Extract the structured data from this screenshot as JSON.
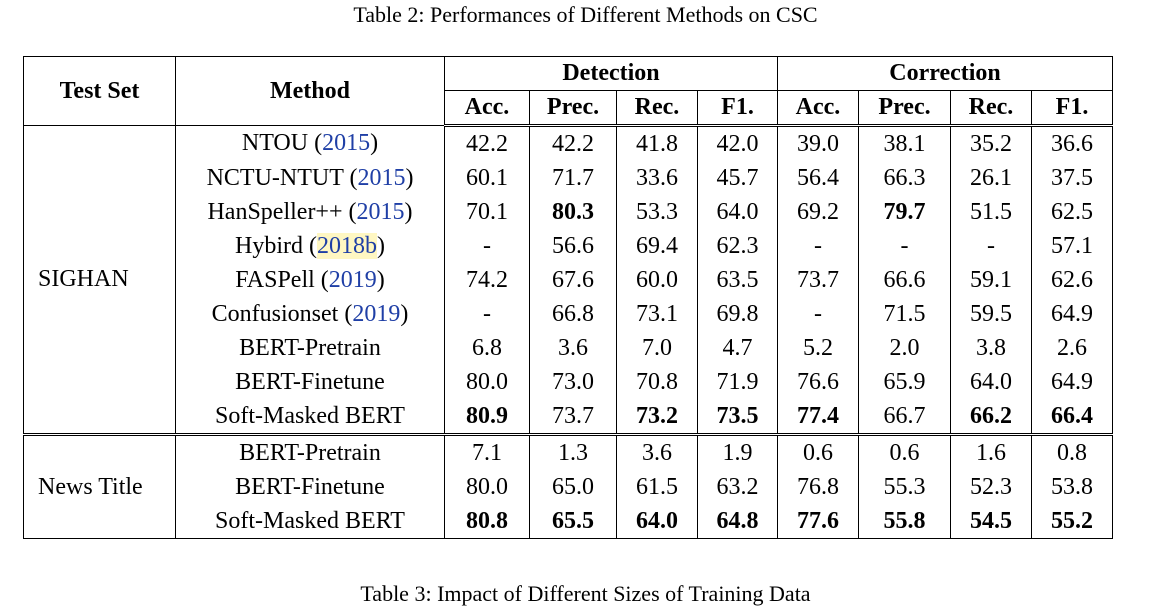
{
  "caption_top": "Table 2: Performances of Different Methods on CSC",
  "caption_bottom": "Table 3: Impact of Different Sizes of Training Data",
  "headers": {
    "test_set": "Test Set",
    "method": "Method",
    "detection": "Detection",
    "correction": "Correction",
    "metrics": [
      "Acc.",
      "Prec.",
      "Rec.",
      "F1.",
      "Acc.",
      "Prec.",
      "Rec.",
      "F1."
    ]
  },
  "groups": [
    {
      "name": "SIGHAN",
      "rows": [
        {
          "method": "NTOU",
          "cite": "2015",
          "values": [
            "42.2",
            "42.2",
            "41.8",
            "42.0",
            "39.0",
            "38.1",
            "35.2",
            "36.6"
          ],
          "bold": []
        },
        {
          "method": "NCTU-NTUT",
          "cite": "2015",
          "values": [
            "60.1",
            "71.7",
            "33.6",
            "45.7",
            "56.4",
            "66.3",
            "26.1",
            "37.5"
          ],
          "bold": []
        },
        {
          "method": "HanSpeller++",
          "cite": "2015",
          "values": [
            "70.1",
            "80.3",
            "53.3",
            "64.0",
            "69.2",
            "79.7",
            "51.5",
            "62.5"
          ],
          "bold": [
            1,
            5
          ]
        },
        {
          "method": "Hybird",
          "cite": "2018b",
          "values": [
            "-",
            "56.6",
            "69.4",
            "62.3",
            "-",
            "-",
            "-",
            "57.1"
          ],
          "bold": []
        },
        {
          "method": "FASPell",
          "cite": "2019",
          "values": [
            "74.2",
            "67.6",
            "60.0",
            "63.5",
            "73.7",
            "66.6",
            "59.1",
            "62.6"
          ],
          "bold": []
        },
        {
          "method": "Confusionset",
          "cite": "2019",
          "values": [
            "-",
            "66.8",
            "73.1",
            "69.8",
            "-",
            "71.5",
            "59.5",
            "64.9"
          ],
          "bold": []
        },
        {
          "method": "BERT-Pretrain",
          "cite": "",
          "values": [
            "6.8",
            "3.6",
            "7.0",
            "4.7",
            "5.2",
            "2.0",
            "3.8",
            "2.6"
          ],
          "bold": []
        },
        {
          "method": "BERT-Finetune",
          "cite": "",
          "values": [
            "80.0",
            "73.0",
            "70.8",
            "71.9",
            "76.6",
            "65.9",
            "64.0",
            "64.9"
          ],
          "bold": []
        },
        {
          "method": "Soft-Masked BERT",
          "cite": "",
          "values": [
            "80.9",
            "73.7",
            "73.2",
            "73.5",
            "77.4",
            "66.7",
            "66.2",
            "66.4"
          ],
          "bold": [
            0,
            2,
            3,
            4,
            6,
            7
          ]
        }
      ]
    },
    {
      "name": "News Title",
      "rows": [
        {
          "method": "BERT-Pretrain",
          "cite": "",
          "values": [
            "7.1",
            "1.3",
            "3.6",
            "1.9",
            "0.6",
            "0.6",
            "1.6",
            "0.8"
          ],
          "bold": []
        },
        {
          "method": "BERT-Finetune",
          "cite": "",
          "values": [
            "80.0",
            "65.0",
            "61.5",
            "63.2",
            "76.8",
            "55.3",
            "52.3",
            "53.8"
          ],
          "bold": []
        },
        {
          "method": "Soft-Masked BERT",
          "cite": "",
          "values": [
            "80.8",
            "65.5",
            "64.0",
            "64.8",
            "77.6",
            "55.8",
            "54.5",
            "55.2"
          ],
          "bold": [
            0,
            1,
            2,
            3,
            4,
            5,
            6,
            7
          ]
        }
      ]
    }
  ]
}
